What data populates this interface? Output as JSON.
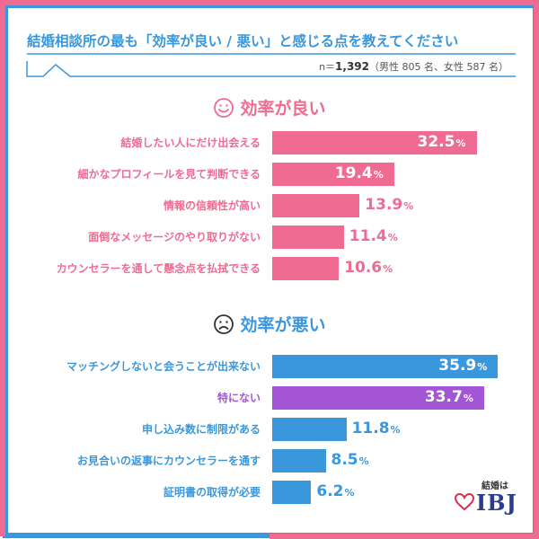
{
  "title": "結婚相談所の最も「効率が良い / 悪い」と感じる点を教えてください",
  "sample": {
    "n_prefix": "n＝",
    "n_value": "1,392",
    "breakdown": "（男性 805 名、女性 587 名）"
  },
  "colors": {
    "pink": "#ef6b92",
    "blue": "#3a97dc",
    "purple": "#a355d6"
  },
  "chart_data": [
    {
      "type": "bar",
      "orientation": "horizontal",
      "title": "効率が良い",
      "unit": "%",
      "xlim": [
        0,
        40
      ],
      "categories": [
        "結婚したい人にだけ出会える",
        "細かなプロフィールを見て判断できる",
        "情報の信頼性が高い",
        "面倒なメッセージのやり取りがない",
        "カウンセラーを通して懸念点を払拭できる"
      ],
      "values": [
        32.5,
        19.4,
        13.9,
        11.4,
        10.6
      ],
      "value_labels": [
        "32.5",
        "19.4",
        "13.9",
        "11.4",
        "10.6"
      ],
      "bar_colors": [
        "#ef6b92",
        "#ef6b92",
        "#ef6b92",
        "#ef6b92",
        "#ef6b92"
      ],
      "icon": "smile-face-icon"
    },
    {
      "type": "bar",
      "orientation": "horizontal",
      "title": "効率が悪い",
      "unit": "%",
      "xlim": [
        0,
        40
      ],
      "categories": [
        "マッチングしないと会うことが出来ない",
        "特にない",
        "申し込み数に制限がある",
        "お見合いの返事にカウンセラーを通す",
        "証明書の取得が必要"
      ],
      "values": [
        35.9,
        33.7,
        11.8,
        8.5,
        6.2
      ],
      "value_labels": [
        "35.9",
        "33.7",
        "11.8",
        "8.5",
        "6.2"
      ],
      "bar_colors": [
        "#3a97dc",
        "#a355d6",
        "#3a97dc",
        "#3a97dc",
        "#3a97dc"
      ],
      "icon": "frown-face-icon"
    }
  ],
  "logo": {
    "caption": "結婚は",
    "text": "IBJ",
    "icon": "heart-icon"
  }
}
